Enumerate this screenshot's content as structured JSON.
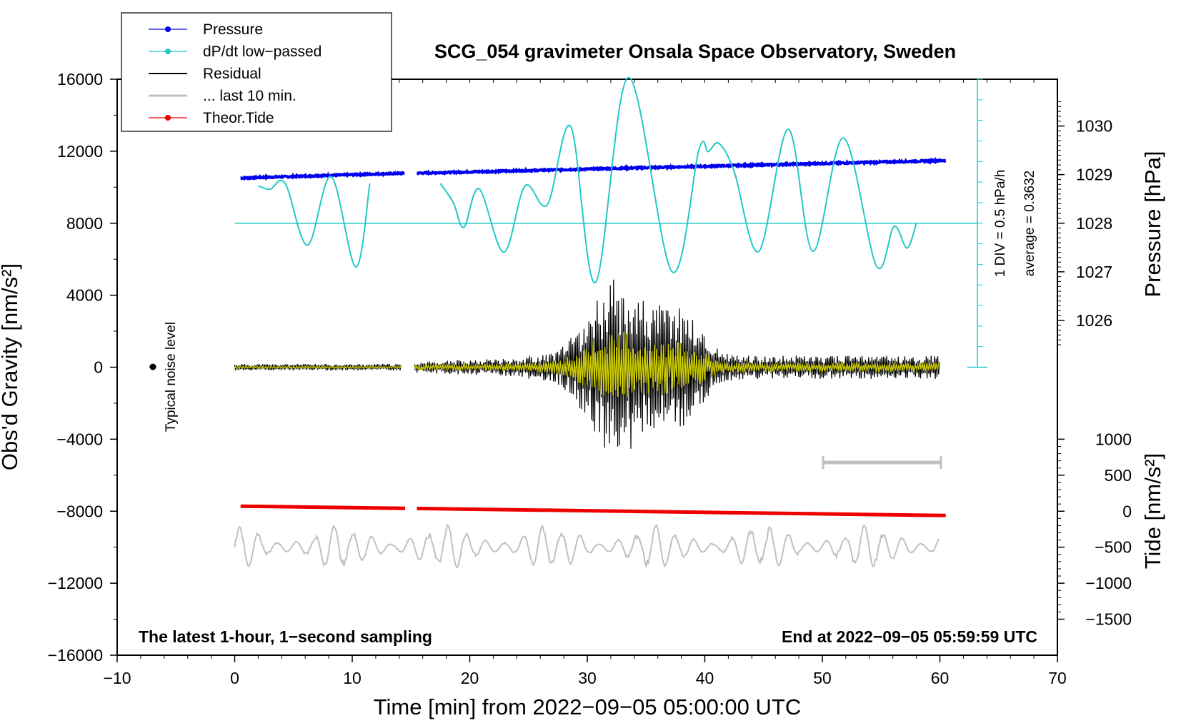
{
  "chart_data": {
    "type": "line",
    "title": "SCG_054 gravimeter Onsala Space Observatory, Sweden",
    "xlabel": "Time [min] from 2022−09−05 05:00:00 UTC",
    "ylabel_left": "Obs'd Gravity [nm/s²]",
    "ylabel_right_top": "Pressure [hPa]",
    "ylabel_right_bottom": "Tide [nm/s²]",
    "xlim": [
      -10,
      70
    ],
    "ylim_left": [
      -16000,
      16000
    ],
    "x_ticks": [
      "−10",
      "0",
      "10",
      "20",
      "30",
      "40",
      "50",
      "60",
      "70"
    ],
    "x_tick_values": [
      -10,
      0,
      10,
      20,
      30,
      40,
      50,
      60,
      70
    ],
    "y_left_ticks": [
      "16000",
      "12000",
      "8000",
      "4000",
      "0",
      "−4000",
      "−8000",
      "−12000",
      "−16000"
    ],
    "y_left_tick_values": [
      16000,
      12000,
      8000,
      4000,
      0,
      -4000,
      -8000,
      -12000,
      -16000
    ],
    "pressure_axis": {
      "ticks": [
        "1030",
        "1029",
        "1028",
        "1027",
        "1026"
      ],
      "values": [
        1030,
        1029,
        1028,
        1027,
        1026
      ]
    },
    "tide_axis": {
      "ticks": [
        "1000",
        "500",
        "0",
        "−500",
        "−1000",
        "−1500"
      ],
      "values": [
        1000,
        500,
        0,
        -500,
        -1000,
        -1500
      ]
    },
    "annotations": {
      "bottom_left": "The latest 1-hour, 1−second sampling",
      "bottom_right": "End at 2022−09−05 05:59:59 UTC",
      "noise": "Typical noise level",
      "div_label": "1 DIV = 0.5 hPa/h",
      "average_label": "average = 0.3632"
    },
    "legend": [
      {
        "label": "Pressure",
        "color": "#0000ee",
        "marker": true
      },
      {
        "label": "dP/dt low−passed",
        "color": "#22c8c8",
        "marker": true
      },
      {
        "label": "Residual",
        "color": "#000000",
        "marker": false
      },
      {
        "label": "... last 10 min.",
        "color": "#c0c0c0",
        "marker": false
      },
      {
        "label": "Theor.Tide",
        "color": "#ee0000",
        "marker": true
      }
    ],
    "series": [
      {
        "name": "Pressure",
        "units": "hPa",
        "color": "#0000ee",
        "x": [
          0.5,
          14.5,
          15.5,
          60.5
        ],
        "y": [
          1028.93,
          1029.03,
          1029.03,
          1029.29
        ],
        "gap": [
          14.5,
          15.5
        ]
      },
      {
        "name": "dP/dt low−passed",
        "units": "hPa/h",
        "color": "#22c8c8",
        "x": [
          2,
          3,
          4.3,
          6.2,
          8.2,
          10.3,
          11.5,
          17.5,
          18.6,
          19.5,
          20.8,
          22.9,
          24.7,
          26.6,
          28.6,
          30.7,
          33.5,
          37.2,
          39.5,
          40.3,
          41.2,
          42.5,
          44.6,
          47.1,
          49.2,
          51.8,
          54.6,
          56.1,
          57.2,
          58
        ],
        "y": [
          0.9,
          0.82,
          0.96,
          -0.53,
          1.13,
          -1.06,
          0.96,
          0.96,
          0.5,
          -0.1,
          0.83,
          -0.7,
          0.9,
          0.45,
          2.33,
          -1.43,
          3.52,
          -1.17,
          1.78,
          1.73,
          1.93,
          1.25,
          -0.68,
          2.27,
          -0.68,
          2.06,
          -1.03,
          -0.08,
          -0.6,
          0.0
        ],
        "zero_level_pressure_axis": 1028
      },
      {
        "name": "Residual",
        "units": "nm/s²",
        "color": "#000000",
        "peak_time_min": 32.3,
        "max": 5600,
        "min": -6000,
        "gap": [
          14.2,
          15.3
        ],
        "end_range_amplitude": 1200
      },
      {
        "name": "Residual band-passed",
        "units": "nm/s²",
        "color": "#cccc00",
        "peak_time_min": 32.5,
        "max": 2000,
        "min": -2100
      },
      {
        "name": "Theor.Tide",
        "units": "nm/s²",
        "color": "#ee0000",
        "x": [
          0.5,
          14.5,
          15.5,
          60.5
        ],
        "y": [
          70,
          40,
          38,
          -60
        ],
        "gap": [
          14.5,
          15.5
        ]
      },
      {
        "name": "... last 10 min.",
        "units": "nm/s²",
        "color": "#c0c0c0",
        "x_range": [
          0,
          60
        ],
        "offset": -10000,
        "amplitude": 1250
      }
    ],
    "tide_axis_ylim": [
      -1500,
      1500
    ],
    "pressure_axis_ylim": [
      1025,
      1031
    ]
  }
}
